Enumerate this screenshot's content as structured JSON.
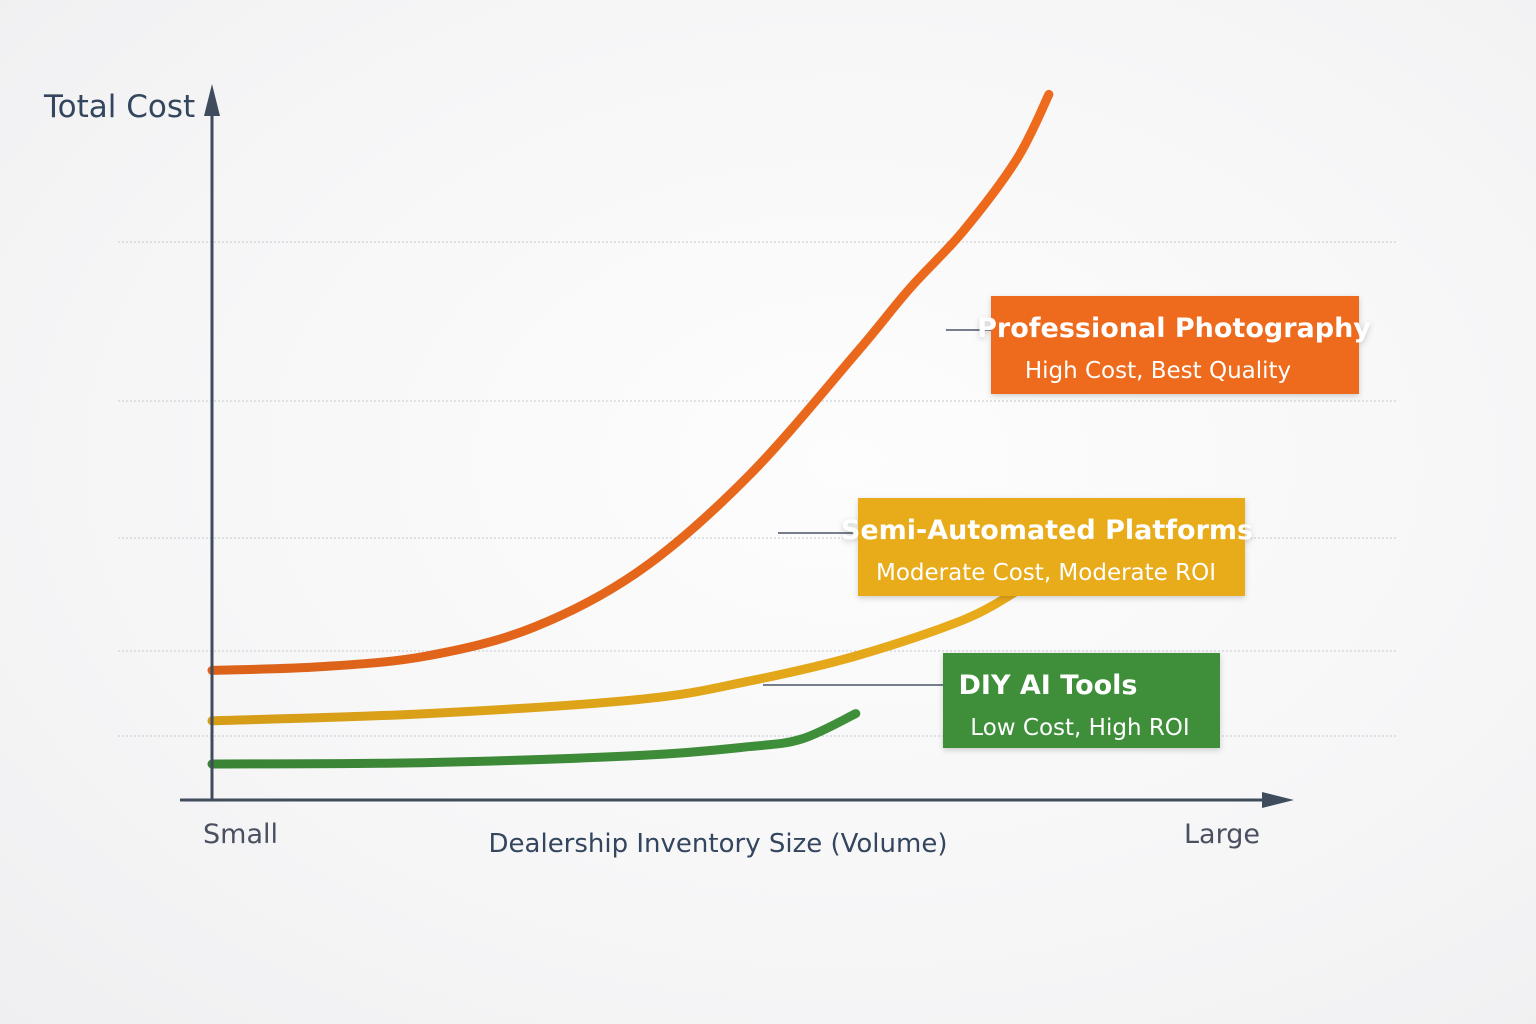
{
  "chart_data": {
    "type": "line",
    "ylabel": "Total Cost",
    "xlabel": "Dealership Inventory Size (Volume)",
    "x_tick_labels": [
      "Small",
      "Large"
    ],
    "x_range": [
      0,
      1
    ],
    "y_range": [
      0,
      1
    ],
    "grid": true,
    "series": [
      {
        "name": "Professional Photography",
        "description": "High Cost, Best Quality",
        "color": "#ee6a1c",
        "x": [
          0,
          0.1,
          0.2,
          0.3,
          0.4,
          0.5,
          0.6,
          0.65,
          0.7,
          0.75,
          0.78
        ],
        "y": [
          0.18,
          0.185,
          0.2,
          0.24,
          0.32,
          0.45,
          0.62,
          0.71,
          0.79,
          0.89,
          0.98
        ]
      },
      {
        "name": "Semi-Automated Platforms",
        "description": "Moderate Cost, Moderate ROI",
        "color": "#e8ab1a",
        "x": [
          0,
          0.2,
          0.4,
          0.5,
          0.6,
          0.7,
          0.75
        ],
        "y": [
          0.11,
          0.12,
          0.14,
          0.165,
          0.2,
          0.25,
          0.29
        ]
      },
      {
        "name": "DIY AI Tools",
        "description": "Low Cost, High ROI",
        "color": "#3f8f3a",
        "x": [
          0,
          0.2,
          0.4,
          0.5,
          0.55,
          0.6
        ],
        "y": [
          0.05,
          0.052,
          0.062,
          0.074,
          0.085,
          0.12
        ]
      }
    ]
  }
}
